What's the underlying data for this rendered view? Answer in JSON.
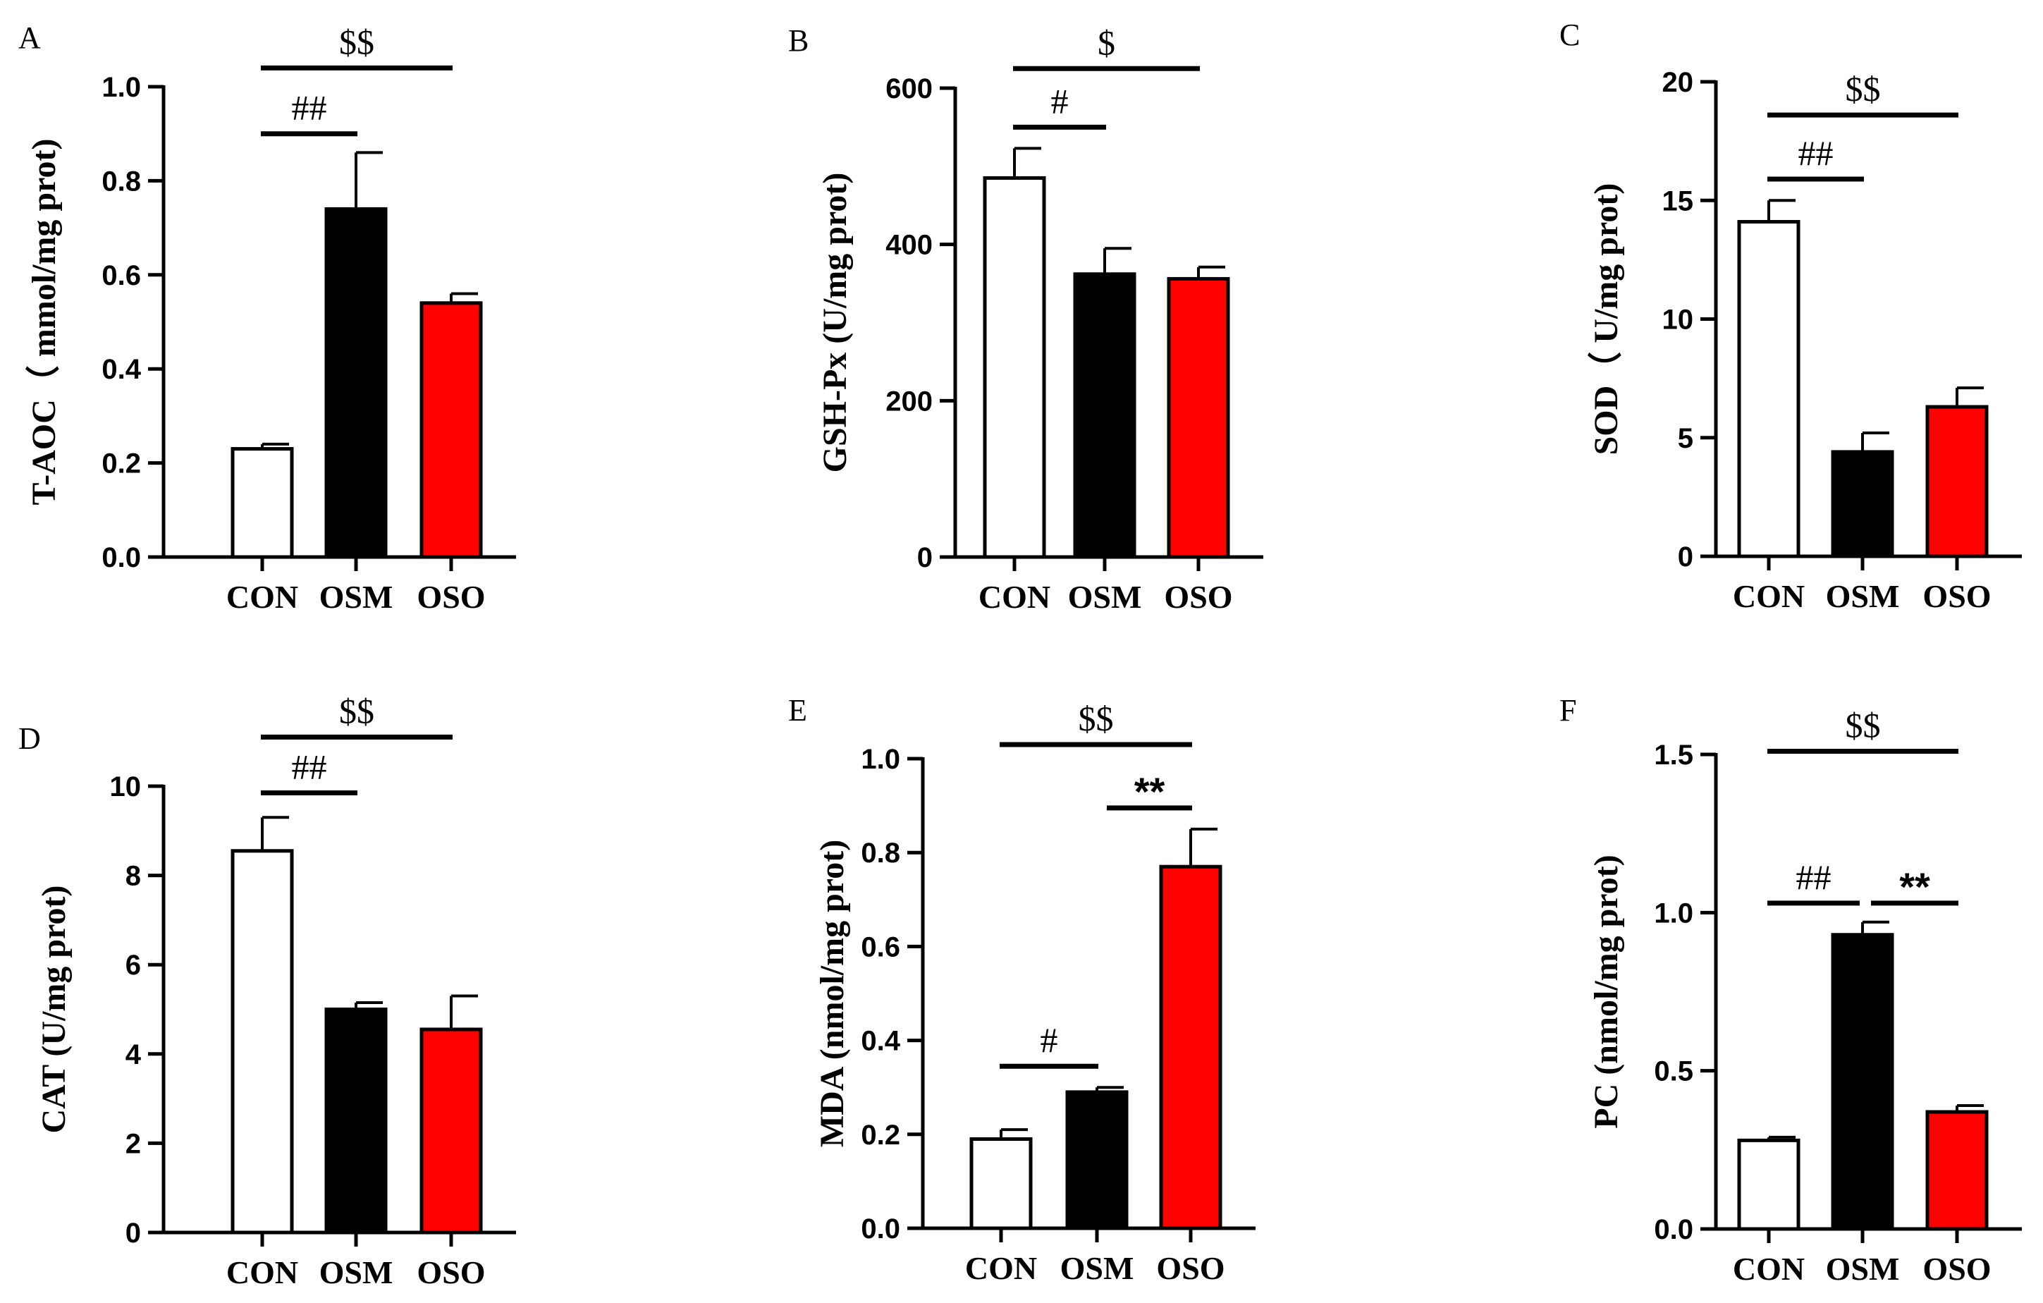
{
  "figure": {
    "colors": {
      "CON": "#ffffff",
      "OSM": "#000000",
      "OSO": "#ff0000",
      "axis": "#000000"
    }
  },
  "chart_data": [
    {
      "type": "bar",
      "panel": "A",
      "categories": [
        "CON",
        "OSM",
        "OSO"
      ],
      "values": [
        0.23,
        0.74,
        0.54
      ],
      "errors": [
        0.01,
        0.12,
        0.02
      ],
      "ylabel": "T-AOC（ mmol/mg prot)",
      "ylim": [
        0,
        1.0
      ],
      "yticks": [
        0.0,
        0.2,
        0.4,
        0.6,
        0.8,
        1.0
      ],
      "ytick_labels": [
        "0.0",
        "0.2",
        "0.4",
        "0.6",
        "0.8",
        "1.0"
      ],
      "annotations": [
        {
          "text": "##",
          "from": 0,
          "to": 1,
          "level": 0.9
        },
        {
          "text": "$$",
          "from": 0,
          "to": 2,
          "level": 1.04
        }
      ]
    },
    {
      "type": "bar",
      "panel": "B",
      "categories": [
        "CON",
        "OSM",
        "OSO"
      ],
      "values": [
        485,
        362,
        356
      ],
      "errors": [
        38,
        33,
        15
      ],
      "ylabel": "GSH-Px (U/mg prot)",
      "ylim": [
        0,
        600
      ],
      "yticks": [
        0,
        200,
        400,
        600
      ],
      "ytick_labels": [
        "0",
        "200",
        "400",
        "600"
      ],
      "annotations": [
        {
          "text": "#",
          "from": 0,
          "to": 1,
          "level": 550
        },
        {
          "text": "$",
          "from": 0,
          "to": 2,
          "level": 625
        }
      ]
    },
    {
      "type": "bar",
      "panel": "C",
      "categories": [
        "CON",
        "OSM",
        "OSO"
      ],
      "values": [
        14.1,
        4.4,
        6.3
      ],
      "errors": [
        0.9,
        0.8,
        0.8
      ],
      "ylabel": "SOD（ U/mg prot)",
      "ylim": [
        0,
        20
      ],
      "yticks": [
        0,
        5,
        10,
        15,
        20
      ],
      "ytick_labels": [
        "0",
        "5",
        "10",
        "15",
        "20"
      ],
      "annotations": [
        {
          "text": "##",
          "from": 0,
          "to": 1,
          "level": 15.9
        },
        {
          "text": "$$",
          "from": 0,
          "to": 2,
          "level": 18.6
        }
      ]
    },
    {
      "type": "bar",
      "panel": "D",
      "categories": [
        "CON",
        "OSM",
        "OSO"
      ],
      "values": [
        8.55,
        5.0,
        4.55
      ],
      "errors": [
        0.75,
        0.15,
        0.75
      ],
      "ylabel": "CAT (U/mg prot)",
      "ylim": [
        0,
        10
      ],
      "yticks": [
        0,
        2,
        4,
        6,
        8,
        10
      ],
      "ytick_labels": [
        "0",
        "2",
        "4",
        "6",
        "8",
        "10"
      ],
      "annotations": [
        {
          "text": "##",
          "from": 0,
          "to": 1,
          "level": 9.85
        },
        {
          "text": "$$",
          "from": 0,
          "to": 2,
          "level": 11.1
        }
      ]
    },
    {
      "type": "bar",
      "panel": "E",
      "categories": [
        "CON",
        "OSM",
        "OSO"
      ],
      "values": [
        0.19,
        0.29,
        0.77
      ],
      "errors": [
        0.02,
        0.01,
        0.08
      ],
      "ylabel": "MDA (nmol/mg prot)",
      "ylim": [
        0,
        1.0
      ],
      "yticks": [
        0.0,
        0.2,
        0.4,
        0.6,
        0.8,
        1.0
      ],
      "ytick_labels": [
        "0.0",
        "0.2",
        "0.4",
        "0.6",
        "0.8",
        "1.0"
      ],
      "annotations": [
        {
          "text": "#",
          "from": 0,
          "to": 1,
          "level": 0.345
        },
        {
          "text": "**",
          "from": 1,
          "to": 2,
          "level": 0.895
        },
        {
          "text": "$$",
          "from": 0,
          "to": 2,
          "level": 1.03
        }
      ]
    },
    {
      "type": "bar",
      "panel": "F",
      "categories": [
        "CON",
        "OSM",
        "OSO"
      ],
      "values": [
        0.28,
        0.93,
        0.37
      ],
      "errors": [
        0.01,
        0.04,
        0.02
      ],
      "ylabel": "PC (nmol/mg prot)",
      "ylim": [
        0,
        1.5
      ],
      "yticks": [
        0.0,
        0.5,
        1.0,
        1.5
      ],
      "ytick_labels": [
        "0.0",
        "0.5",
        "1.0",
        "1.5"
      ],
      "annotations": [
        {
          "text": "##",
          "from": 0,
          "to": 1,
          "level": 1.03
        },
        {
          "text": "**",
          "from": 1,
          "to": 2,
          "level": 1.03
        },
        {
          "text": "$$",
          "from": 0,
          "to": 2,
          "level": 1.51
        }
      ]
    }
  ]
}
